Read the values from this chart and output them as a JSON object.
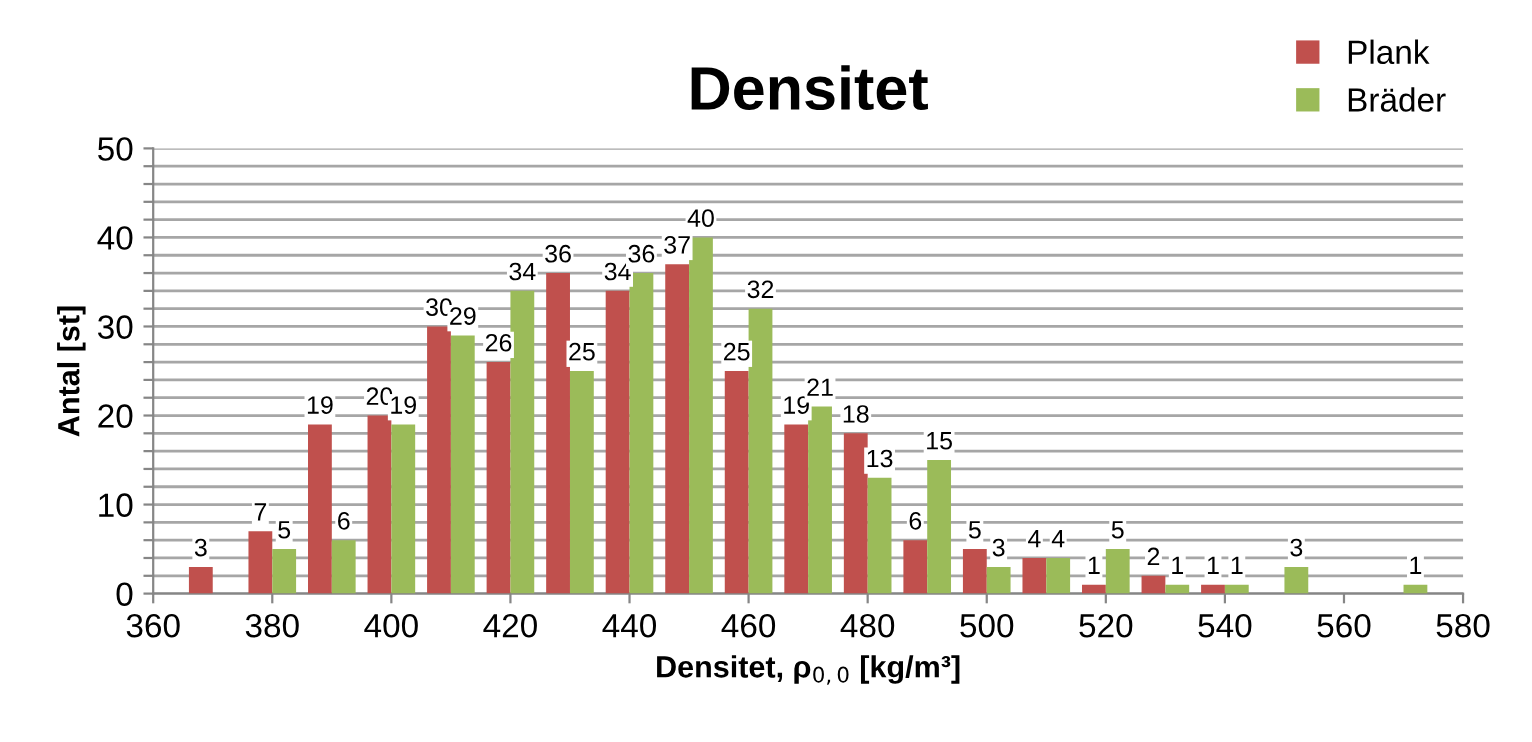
{
  "chart_data": {
    "type": "bar",
    "title": "Densitet",
    "xlabel": "Densitet, ρ$_{0,0}$ [kg/m³]",
    "ylabel": "Antal [st]",
    "x": [
      370,
      380,
      390,
      400,
      410,
      420,
      430,
      440,
      450,
      460,
      470,
      480,
      490,
      500,
      510,
      520,
      530,
      540,
      550,
      560,
      570
    ],
    "series": [
      {
        "name": "Plank",
        "color": "#c0504d",
        "values": [
          3,
          7,
          19,
          20,
          30,
          26,
          36,
          34,
          37,
          25,
          19,
          18,
          6,
          5,
          4,
          1,
          2,
          1,
          null,
          null,
          null
        ]
      },
      {
        "name": "Bräder",
        "color": "#9bbb59",
        "values": [
          null,
          5,
          6,
          19,
          29,
          34,
          25,
          36,
          40,
          32,
          21,
          13,
          15,
          3,
          4,
          5,
          1,
          1,
          3,
          null,
          1
        ]
      }
    ],
    "xlim": [
      360,
      580
    ],
    "xticks": [
      360,
      380,
      400,
      420,
      440,
      460,
      480,
      500,
      520,
      540,
      560,
      580
    ],
    "ylim": [
      0,
      50
    ],
    "yticks": [
      0,
      {
        "value": 2,
        "label": null
      },
      {
        "value": 4,
        "label": null
      },
      {
        "value": 6,
        "label": null
      },
      {
        "value": 8,
        "label": null
      },
      10,
      {
        "value": 12,
        "label": null
      },
      {
        "value": 14,
        "label": null
      },
      {
        "value": 16,
        "label": null
      },
      {
        "value": 18,
        "label": null
      },
      20,
      {
        "value": 22,
        "label": null
      },
      {
        "value": 24,
        "label": null
      },
      {
        "value": 26,
        "label": null
      },
      {
        "value": 28,
        "label": null
      },
      30,
      {
        "value": 32,
        "label": null
      },
      {
        "value": 34,
        "label": null
      },
      {
        "value": 36,
        "label": null
      },
      {
        "value": 38,
        "label": null
      },
      40,
      {
        "value": 42,
        "label": null
      },
      {
        "value": 44,
        "label": null
      },
      {
        "value": 46,
        "label": null
      },
      {
        "value": 48,
        "label": null
      },
      50
    ],
    "grid": "y",
    "legend": "top right",
    "data_labels": true
  }
}
